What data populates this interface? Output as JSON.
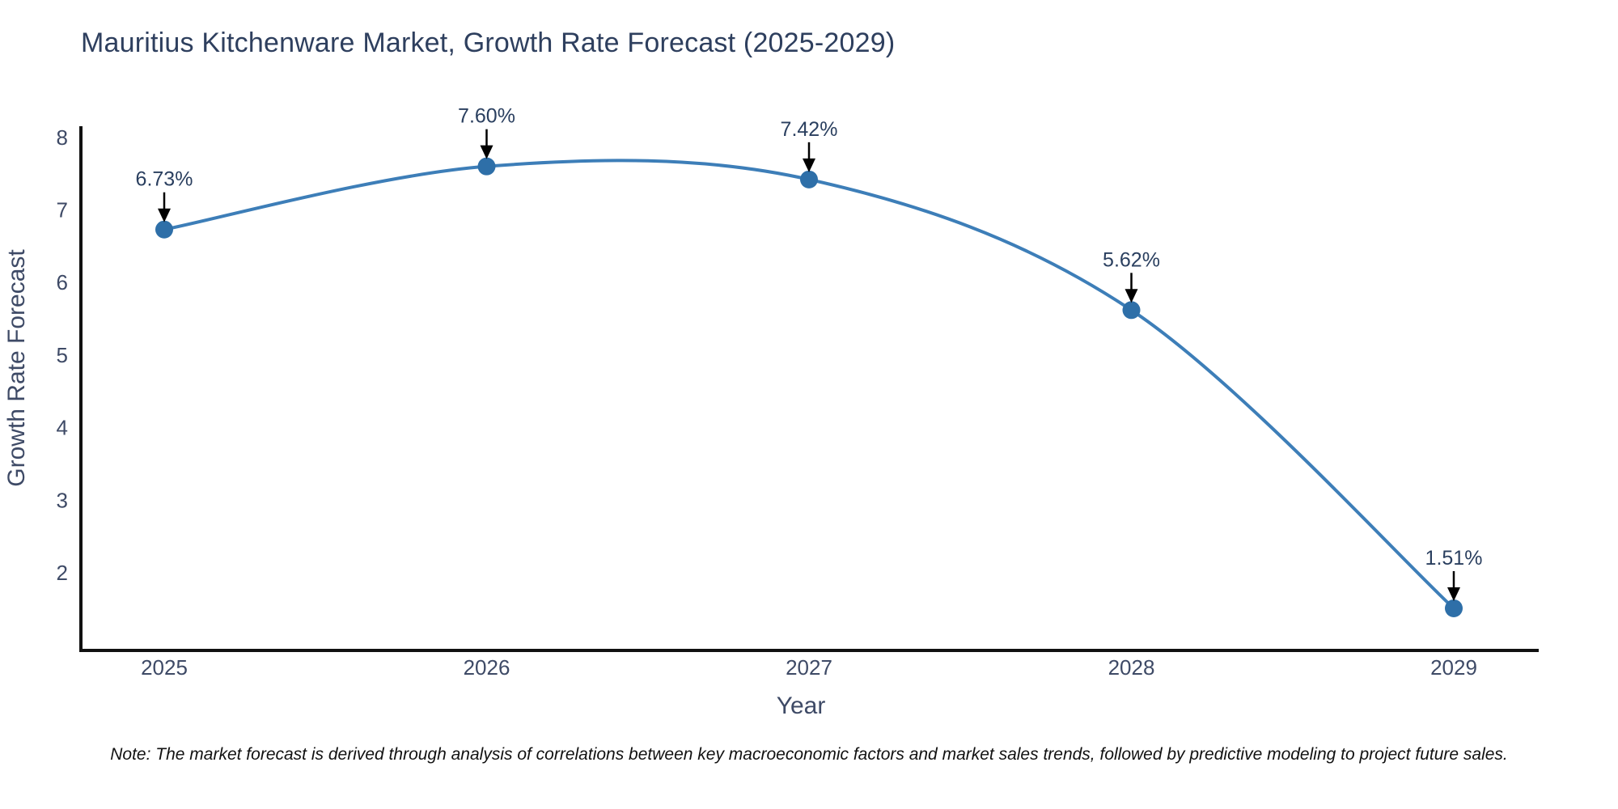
{
  "page": {
    "note": "Note: The market forecast is derived through analysis of correlations between key macroeconomic factors and market sales trends, followed by predictive modeling to project future sales."
  },
  "chart_data": {
    "type": "line",
    "title": "Mauritius Kitchenware Market, Growth Rate Forecast (2025-2029)",
    "xlabel": "Year",
    "ylabel": "Growth Rate Forecast",
    "categories": [
      "2025",
      "2026",
      "2027",
      "2028",
      "2029"
    ],
    "values": [
      6.73,
      7.6,
      7.42,
      5.62,
      1.51
    ],
    "point_labels": [
      "6.73%",
      "7.60%",
      "7.42%",
      "5.62%",
      "1.51%"
    ],
    "series_name": "Growth Rate Forecast",
    "line_shape": "spline",
    "markers": true,
    "grid": false,
    "legend": "none",
    "yticks": [
      2,
      3,
      4,
      5,
      6,
      7,
      8
    ],
    "ylim": [
      0.9,
      8.2
    ],
    "annotations_arrow": "down",
    "colors": {
      "line": "#3d7eb8",
      "marker": "#2e6fa8",
      "axis": "#111111",
      "tick_text": "#3e4a66",
      "axis_title_text": "#3e4a66",
      "annotation_text": "#2a3f5f",
      "annotation_arrow": "#000000",
      "title_text": "#2e3f5e",
      "note_text": "#111111",
      "background": "#ffffff"
    }
  }
}
